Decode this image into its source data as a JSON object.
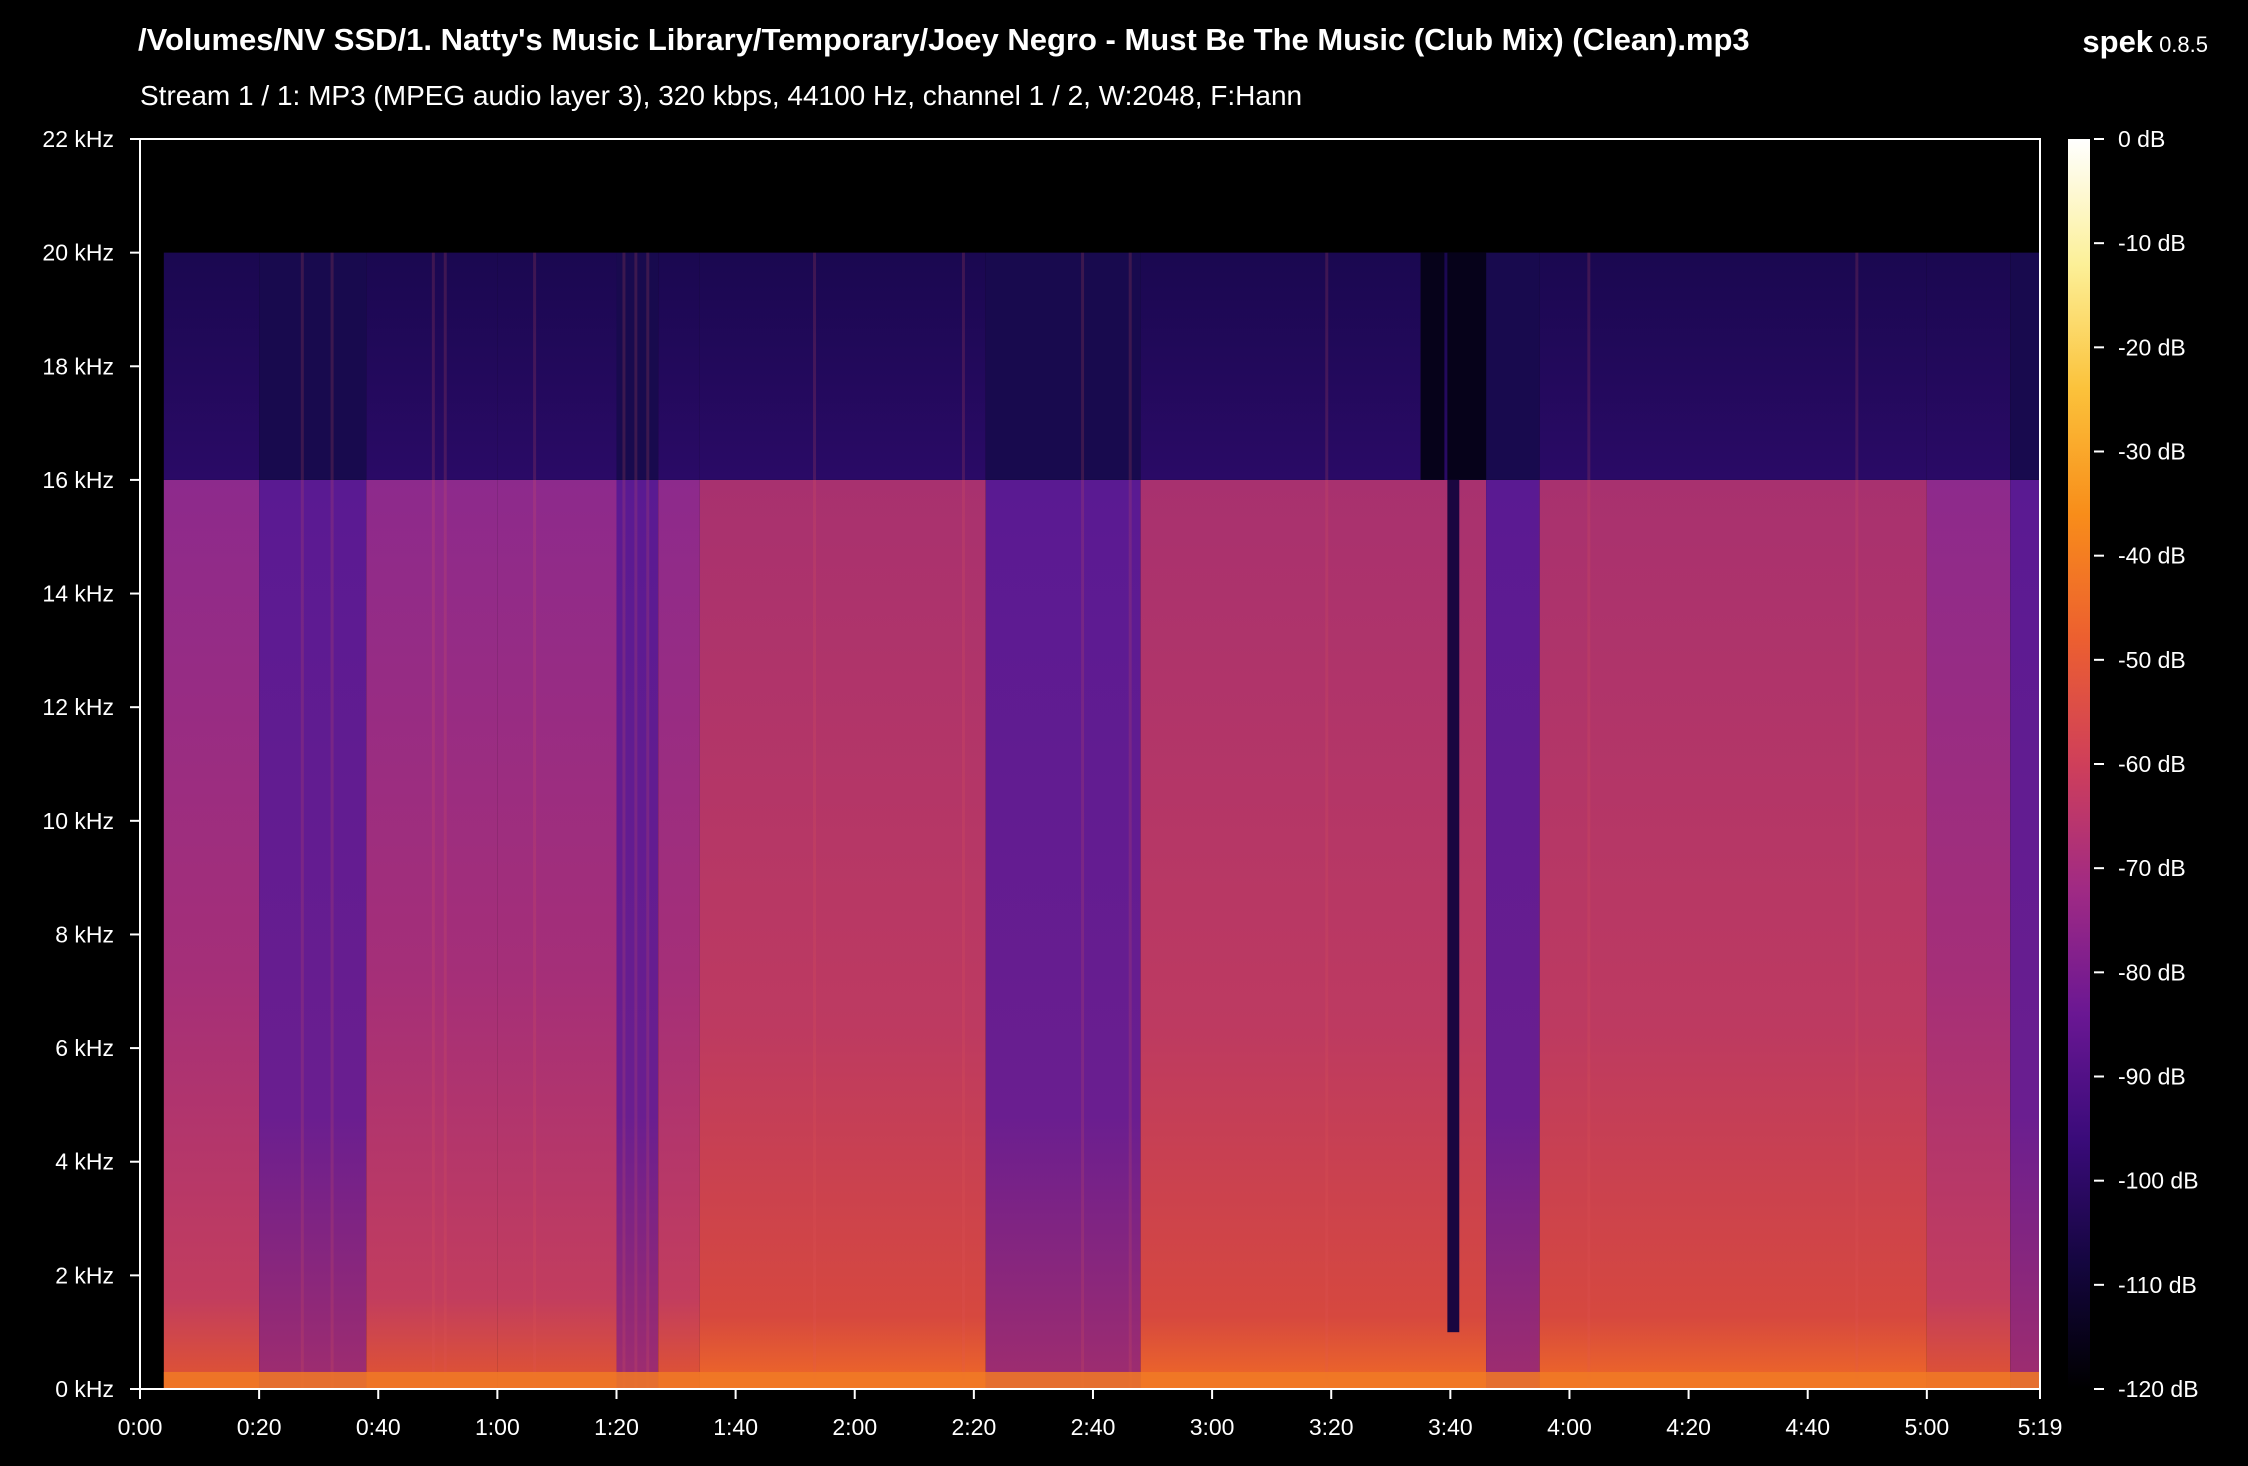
{
  "header": {
    "file_path": "/Volumes/NV SSD/1. Natty's Music Library/Temporary/Joey Negro - Must Be The Music (Club Mix) (Clean).mp3",
    "stream_info": "Stream 1 / 1: MP3 (MPEG audio layer 3), 320 kbps, 44100 Hz, channel 1 / 2, W:2048, F:Hann",
    "app_name": "spek",
    "app_version": "0.8.5"
  },
  "chart_data": {
    "type": "heatmap",
    "x_ticks": [
      "0:00",
      "0:20",
      "0:40",
      "1:00",
      "1:20",
      "1:40",
      "2:00",
      "2:20",
      "2:40",
      "3:00",
      "3:20",
      "3:40",
      "4:00",
      "4:20",
      "4:40",
      "5:00",
      "5:19"
    ],
    "x_tick_seconds": [
      0,
      20,
      40,
      60,
      80,
      100,
      120,
      140,
      160,
      180,
      200,
      220,
      240,
      260,
      280,
      300,
      319
    ],
    "x_range_seconds": [
      0,
      319
    ],
    "y_ticks": [
      "0 kHz",
      "2 kHz",
      "4 kHz",
      "6 kHz",
      "8 kHz",
      "10 kHz",
      "12 kHz",
      "14 kHz",
      "16 kHz",
      "18 kHz",
      "20 kHz",
      "22 kHz"
    ],
    "y_tick_khz": [
      0,
      2,
      4,
      6,
      8,
      10,
      12,
      14,
      16,
      18,
      20,
      22
    ],
    "y_range_khz": [
      0,
      22
    ],
    "colorbar_ticks": [
      "0 dB",
      "-10 dB",
      "-20 dB",
      "-30 dB",
      "-40 dB",
      "-50 dB",
      "-60 dB",
      "-70 dB",
      "-80 dB",
      "-90 dB",
      "-100 dB",
      "-110 dB",
      "-120 dB"
    ],
    "colorbar_db": [
      0,
      -10,
      -20,
      -30,
      -40,
      -50,
      -60,
      -70,
      -80,
      -90,
      -100,
      -110,
      -120
    ],
    "colormap": [
      "#000000",
      "#14063f",
      "#3a0b7a",
      "#6a1793",
      "#a02a84",
      "#cf3f5a",
      "#ec5f30",
      "#f88d1a",
      "#fbc23b",
      "#fcf098",
      "#ffffff"
    ],
    "lowpass_cutoff_khz": 16,
    "content_ceiling_khz": 20
  }
}
